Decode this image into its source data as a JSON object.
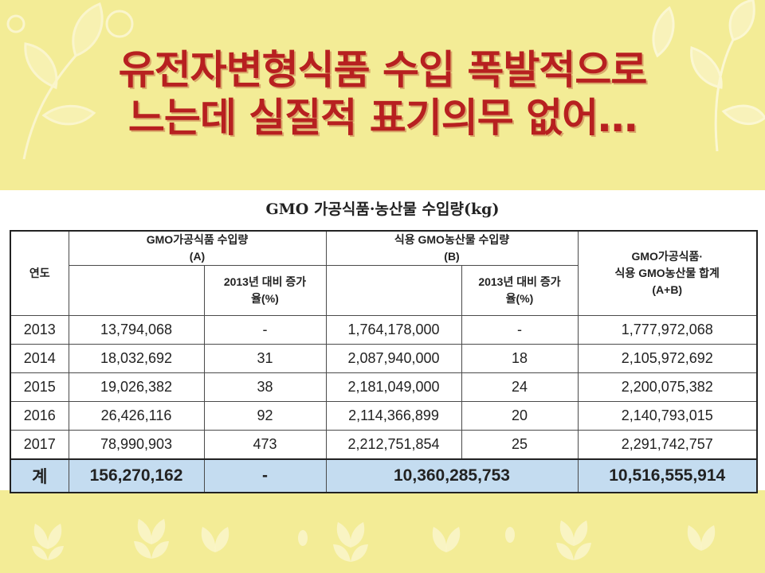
{
  "slide": {
    "headline_line1": "유전자변형식품 수입 폭발적으로",
    "headline_line2": "느는데 실질적 표기의무 없어…"
  },
  "table": {
    "title": "GMO 가공식품·농산물 수입량(kg)",
    "headers": {
      "year": "연도",
      "processed_group": "GMO가공식품 수입량 (A)",
      "processed_growth": "2013년 대비 증가율(%)",
      "crop_group": "식용 GMO농산물 수입량 (B)",
      "crop_growth": "2013년 대비 증가율(%)",
      "total_l1": "GMO가공식품·",
      "total_l2": "식용 GMO농산물 합계",
      "total_l3": "(A+B)"
    },
    "rows": [
      {
        "year": "2013",
        "a": "13,794,068",
        "a_growth": "-",
        "b": "1,764,178,000",
        "b_growth": "-",
        "sum": "1,777,972,068"
      },
      {
        "year": "2014",
        "a": "18,032,692",
        "a_growth": "31",
        "b": "2,087,940,000",
        "b_growth": "18",
        "sum": "2,105,972,692"
      },
      {
        "year": "2015",
        "a": "19,026,382",
        "a_growth": "38",
        "b": "2,181,049,000",
        "b_growth": "24",
        "sum": "2,200,075,382"
      },
      {
        "year": "2016",
        "a": "26,426,116",
        "a_growth": "92",
        "b": "2,114,366,899",
        "b_growth": "20",
        "sum": "2,140,793,015"
      },
      {
        "year": "2017",
        "a": "78,990,903",
        "a_growth": "473",
        "b": "2,212,751,854",
        "b_growth": "25",
        "sum": "2,291,742,757"
      }
    ],
    "total": {
      "label": "계",
      "a": "156,270,162",
      "a_growth": "-",
      "b": "10,360,285,753",
      "sum": "10,516,555,914"
    }
  },
  "colors": {
    "background": "#f3ec96",
    "headline": "#b72020",
    "total_row": "#c4dcf0"
  }
}
